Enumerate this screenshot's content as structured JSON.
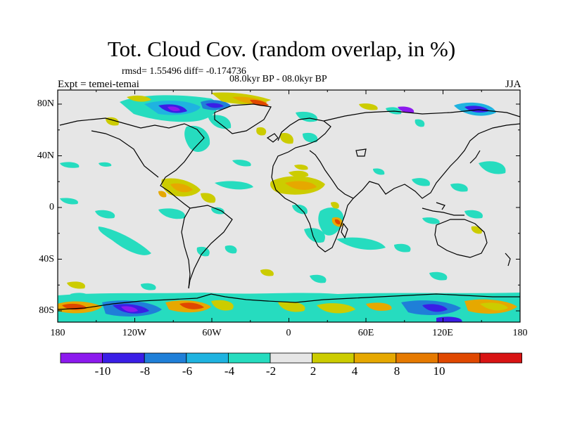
{
  "header": {
    "title": "Tot. Cloud Cov. (random overlap, in %)",
    "stats": "rmsd= 1.55496 diff= -0.174736",
    "period": "08.0kyr BP - 08.0kyr BP",
    "experiment": "Expt = temei-temai",
    "season": "JJA"
  },
  "axes": {
    "lat_labels": [
      "80N",
      "40N",
      "0",
      "40S",
      "80S"
    ],
    "lon_labels": [
      "180",
      "120W",
      "60W",
      "0",
      "60E",
      "120E",
      "180"
    ]
  },
  "colorbar": {
    "labels": [
      "-10",
      "-8",
      "-6",
      "-4",
      "-2",
      "2",
      "4",
      "8",
      "10"
    ],
    "colors": [
      "#8c1aee",
      "#3a1ee6",
      "#1f7fd8",
      "#1fb3e0",
      "#26dcbf",
      "#e6e6e6",
      "#cccc00",
      "#e6a800",
      "#e67a00",
      "#e04800",
      "#d81414"
    ]
  },
  "colors": {
    "ocean_background": "#e6e6e6",
    "coastline": "#000000"
  }
}
